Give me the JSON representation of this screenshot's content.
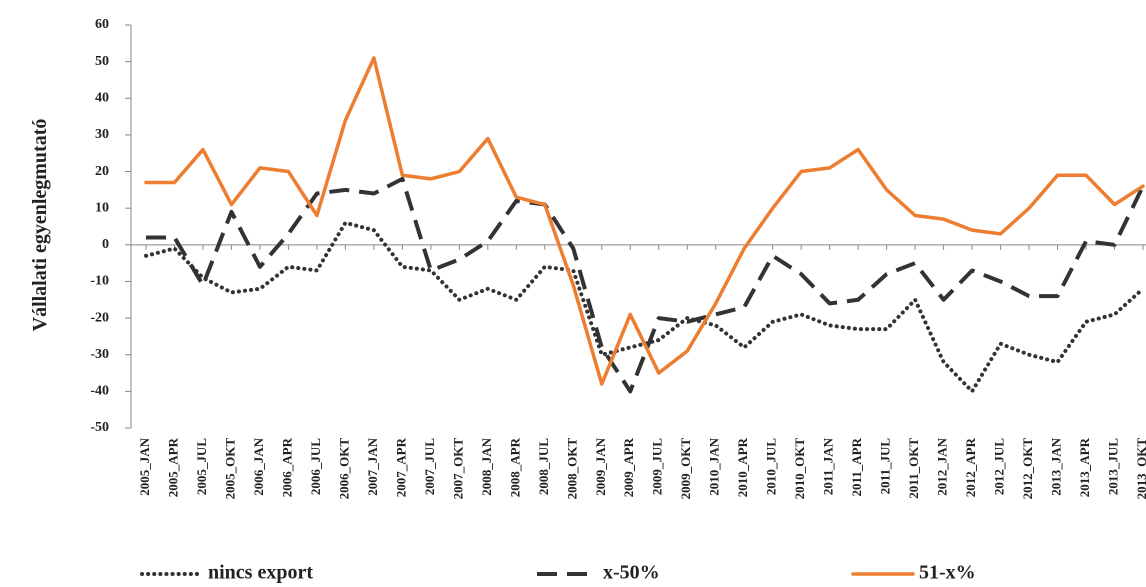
{
  "chart_data": {
    "type": "line",
    "y_label": "Vállalati egyenlegmutató",
    "categories": [
      "2005_JAN",
      "2005_APR",
      "2005_JUL",
      "2005_OKT",
      "2006_JAN",
      "2006_APR",
      "2006_JUL",
      "2006_OKT",
      "2007_JAN",
      "2007_APR",
      "2007_JUL",
      "2007_OKT",
      "2008_JAN",
      "2008_APR",
      "2008_JUL",
      "2008_OKT",
      "2009_JAN",
      "2009_APR",
      "2009_JUL",
      "2009_OKT",
      "2010_JAN",
      "2010_APR",
      "2010_JUL",
      "2010_OKT",
      "2011_JAN",
      "2011_APR",
      "2011_JUL",
      "2011_OKT",
      "2012_JAN",
      "2012_APR",
      "2012_JUL",
      "2012_OKT",
      "2013_JAN",
      "2013_APR",
      "2013_JUL",
      "2013_OKT"
    ],
    "series": [
      {
        "name": "nincs export",
        "color": "#333333",
        "style": "dotted",
        "values": [
          -3,
          -1,
          -9,
          -13,
          -12,
          -6,
          -7,
          6,
          4,
          -6,
          -7,
          -15,
          -12,
          -15,
          -6,
          -7,
          -30,
          -28,
          -26,
          -20,
          -22,
          -28,
          -21,
          -19,
          -22,
          -23,
          -23,
          -15,
          -32,
          -40,
          -27,
          -30,
          -32,
          -21,
          -19,
          -12
        ]
      },
      {
        "name": "x-50%",
        "color": "#333333",
        "style": "dashed",
        "values": [
          2,
          2,
          -11,
          9,
          -6,
          3,
          14,
          15,
          14,
          18,
          -7,
          -4,
          1,
          12,
          11,
          -1,
          -28,
          -40,
          -20,
          -21,
          -19,
          -17,
          -3,
          -8,
          -16,
          -15,
          -8,
          -5,
          -15,
          -7,
          -10,
          -14,
          -14,
          1,
          0,
          16
        ]
      },
      {
        "name": "51-x%",
        "color": "#ed7d31",
        "style": "solid",
        "values": [
          17,
          17,
          26,
          11,
          21,
          20,
          8,
          34,
          51,
          19,
          18,
          20,
          29,
          13,
          11,
          -11,
          -38,
          -19,
          -35,
          -29,
          -16,
          -1,
          10,
          20,
          21,
          26,
          15,
          8,
          7,
          4,
          3,
          10,
          19,
          19,
          11,
          16
        ]
      }
    ],
    "ylim": [
      -50,
      60
    ],
    "yticks": [
      -50,
      -40,
      -30,
      -20,
      -10,
      0,
      10,
      20,
      30,
      40,
      50,
      60
    ]
  }
}
